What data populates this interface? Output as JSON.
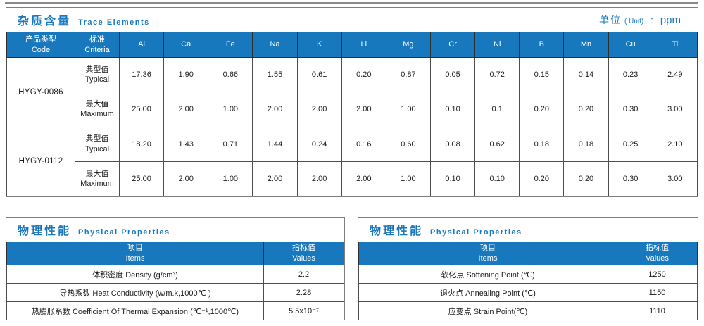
{
  "colors": {
    "accent_blue": "#1878BE",
    "cell_border": "#4d4d4d",
    "frame_border": "#7f7f7f",
    "text": "#1a1a1a"
  },
  "trace_section": {
    "title_zh": "杂质含量",
    "title_en": "Trace Elements",
    "unit_zh": "单位",
    "unit_paren": "( Unit)",
    "unit_colon": ":",
    "unit_value": "ppm",
    "columns": {
      "product_zh": "产品类型",
      "product_en": "Code",
      "criteria_zh": "标准",
      "criteria_en": "Criteria"
    },
    "elements": [
      "Al",
      "Ca",
      "Fe",
      "Na",
      "K",
      "Li",
      "Mg",
      "Cr",
      "Ni",
      "B",
      "Mn",
      "Cu",
      "Ti"
    ],
    "groups": [
      {
        "code": "HYGY-0086",
        "rows": [
          {
            "label_zh": "典型值",
            "label_en": "Typical",
            "values": [
              "17.36",
              "1.90",
              "0.66",
              "1.55",
              "0.61",
              "0.20",
              "0.87",
              "0.05",
              "0.72",
              "0.15",
              "0.14",
              "0.23",
              "2.49"
            ]
          },
          {
            "label_zh": "最大值",
            "label_en": "Maximum",
            "values": [
              "25.00",
              "2.00",
              "1.00",
              "2.00",
              "2.00",
              "2.00",
              "1.00",
              "0.10",
              "0.1",
              "0.20",
              "0.20",
              "0.30",
              "3.00"
            ]
          }
        ]
      },
      {
        "code": "HYGY-0112",
        "rows": [
          {
            "label_zh": "典型值",
            "label_en": "Typical",
            "values": [
              "18.20",
              "1.43",
              "0.71",
              "1.44",
              "0.24",
              "0.16",
              "0.60",
              "0.08",
              "0.62",
              "0.18",
              "0.18",
              "0.25",
              "2.10"
            ]
          },
          {
            "label_zh": "最大值",
            "label_en": "Maximum",
            "values": [
              "25.00",
              "2.00",
              "1.00",
              "2.00",
              "2.00",
              "2.00",
              "1.00",
              "0.10",
              "0.10",
              "0.20",
              "0.20",
              "0.30",
              "3.00"
            ]
          }
        ]
      }
    ]
  },
  "physical_left": {
    "title_zh": "物理性能",
    "title_en": "Physical Properties",
    "col_items_zh": "项目",
    "col_items_en": "Items",
    "col_values_zh": "指标值",
    "col_values_en": "Values",
    "rows": [
      {
        "item": "体积密度 Density (g/cm³)",
        "value": "2.2"
      },
      {
        "item": "导热系数 Heat Conductivity (w/m.k,1000℃ )",
        "value": "2.28"
      },
      {
        "item": "热膨胀系数 Coefficient Of Thermal Expansion (℃⁻¹,1000℃)",
        "value": "5.5x10⁻⁷"
      }
    ]
  },
  "physical_right": {
    "title_zh": "物理性能",
    "title_en": "Physical Properties",
    "col_items_zh": "项目",
    "col_items_en": "Items",
    "col_values_zh": "指标值",
    "col_values_en": "Values",
    "rows": [
      {
        "item": "软化点 Softening Point (℃)",
        "value": "1250"
      },
      {
        "item": "退火点 Annealing Point (℃)",
        "value": "1150"
      },
      {
        "item": "应变点 Strain Point(℃)",
        "value": "1110"
      }
    ]
  }
}
